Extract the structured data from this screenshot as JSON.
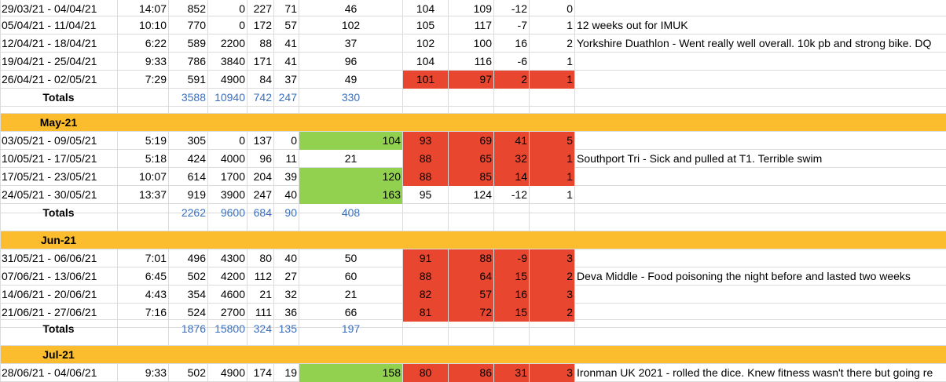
{
  "colors": {
    "month_band": "#fbbd2e",
    "green_cell": "#92d050",
    "red_cell": "#e8462f",
    "totals_blue": "#3a6fbd"
  },
  "rows": [
    {
      "kind": "week",
      "date": "29/03/21 - 04/04/21",
      "time": "14:07",
      "a": "852",
      "b": "0",
      "c": "227",
      "d": "71",
      "e": "46",
      "f": "104",
      "g": "109",
      "h": "-12",
      "i": "0",
      "note": "",
      "e_color": "",
      "fgh_color": ""
    },
    {
      "kind": "week",
      "date": "05/04/21 - 11/04/21",
      "time": "10:10",
      "a": "770",
      "b": "0",
      "c": "172",
      "d": "57",
      "e": "102",
      "f": "105",
      "g": "117",
      "h": "-7",
      "i": "1",
      "note": "12 weeks out for IMUK",
      "e_color": "",
      "fgh_color": ""
    },
    {
      "kind": "week",
      "date": "12/04/21 - 18/04/21",
      "time": "6:22",
      "a": "589",
      "b": "2200",
      "c": "88",
      "d": "41",
      "e": "37",
      "f": "102",
      "g": "100",
      "h": "16",
      "i": "2",
      "note": "Yorkshire Duathlon - Went really well overall. 10k pb and strong bike. DQ",
      "e_color": "",
      "fgh_color": ""
    },
    {
      "kind": "week",
      "date": "19/04/21 - 25/04/21",
      "time": "9:33",
      "a": "786",
      "b": "3840",
      "c": "171",
      "d": "41",
      "e": "96",
      "f": "104",
      "g": "116",
      "h": "-6",
      "i": "1",
      "note": "",
      "e_color": "",
      "fgh_color": ""
    },
    {
      "kind": "week",
      "date": "26/04/21 - 02/05/21",
      "time": "7:29",
      "a": "591",
      "b": "4900",
      "c": "84",
      "d": "37",
      "e": "49",
      "f": "101",
      "g": "97",
      "h": "2",
      "i": "1",
      "note": "",
      "e_color": "",
      "fgh_color": "red"
    },
    {
      "kind": "totals",
      "label": "Totals",
      "a": "3588",
      "b": "10940",
      "c": "742",
      "d": "247",
      "e": "330"
    },
    {
      "kind": "blank"
    },
    {
      "kind": "month",
      "label": "May-21"
    },
    {
      "kind": "week",
      "date": "03/05/21 - 09/05/21",
      "time": "5:19",
      "a": "305",
      "b": "0",
      "c": "137",
      "d": "0",
      "e": "104",
      "f": "93",
      "g": "69",
      "h": "41",
      "i": "5",
      "note": "",
      "e_color": "green",
      "fgh_color": "red"
    },
    {
      "kind": "week",
      "date": "10/05/21 - 17/05/21",
      "time": "5:18",
      "a": "424",
      "b": "4000",
      "c": "96",
      "d": "11",
      "e": "21",
      "f": "88",
      "g": "65",
      "h": "32",
      "i": "1",
      "note": "Southport Tri - Sick and pulled at T1. Terrible swim",
      "e_color": "",
      "fgh_color": "red"
    },
    {
      "kind": "week",
      "date": "17/05/21 - 23/05/21",
      "time": "10:07",
      "a": "614",
      "b": "1700",
      "c": "204",
      "d": "39",
      "e": "120",
      "f": "88",
      "g": "85",
      "h": "14",
      "i": "1",
      "note": "",
      "e_color": "green",
      "fgh_color": "red"
    },
    {
      "kind": "week",
      "date": "24/05/21 - 30/05/21",
      "time": "13:37",
      "a": "919",
      "b": "3900",
      "c": "247",
      "d": "40",
      "e": "163",
      "f": "95",
      "g": "124",
      "h": "-12",
      "i": "1",
      "note": "",
      "e_color": "green",
      "fgh_color": ""
    },
    {
      "kind": "totals",
      "label": "Totals",
      "a": "2262",
      "b": "9600",
      "c": "684",
      "d": "90",
      "e": "408"
    },
    {
      "kind": "blank"
    },
    {
      "kind": "month",
      "label": "Jun-21"
    },
    {
      "kind": "week",
      "date": "31/05/21 - 06/06/21",
      "time": "7:01",
      "a": "496",
      "b": "4300",
      "c": "80",
      "d": "40",
      "e": "50",
      "f": "91",
      "g": "88",
      "h": "-9",
      "i": "3",
      "note": "",
      "e_color": "",
      "fgh_color": "red"
    },
    {
      "kind": "week",
      "date": "07/06/21 - 13/06/21",
      "time": "6:45",
      "a": "502",
      "b": "4200",
      "c": "112",
      "d": "27",
      "e": "60",
      "f": "88",
      "g": "64",
      "h": "15",
      "i": "2",
      "note": "Deva Middle - Food poisoning the night before and lasted two weeks",
      "e_color": "",
      "fgh_color": "red"
    },
    {
      "kind": "week",
      "date": "14/06/21 - 20/06/21",
      "time": "4:43",
      "a": "354",
      "b": "4600",
      "c": "21",
      "d": "32",
      "e": "21",
      "f": "82",
      "g": "57",
      "h": "16",
      "i": "3",
      "note": "",
      "e_color": "",
      "fgh_color": "red"
    },
    {
      "kind": "week",
      "date": "21/06/21 - 27/06/21",
      "time": "7:16",
      "a": "524",
      "b": "2700",
      "c": "111",
      "d": "36",
      "e": "66",
      "f": "81",
      "g": "72",
      "h": "15",
      "i": "2",
      "note": "",
      "e_color": "",
      "fgh_color": "red"
    },
    {
      "kind": "totals",
      "label": "Totals",
      "a": "1876",
      "b": "15800",
      "c": "324",
      "d": "135",
      "e": "197"
    },
    {
      "kind": "blank"
    },
    {
      "kind": "month",
      "label": "Jul-21"
    },
    {
      "kind": "week",
      "date": "28/06/21 - 04/06/21",
      "time": "9:33",
      "a": "502",
      "b": "4900",
      "c": "174",
      "d": "19",
      "e": "158",
      "f": "80",
      "g": "86",
      "h": "31",
      "i": "3",
      "note": "Ironman UK 2021 - rolled the dice. Knew fitness wasn't there but going re",
      "e_color": "green",
      "fgh_color": "red"
    }
  ]
}
